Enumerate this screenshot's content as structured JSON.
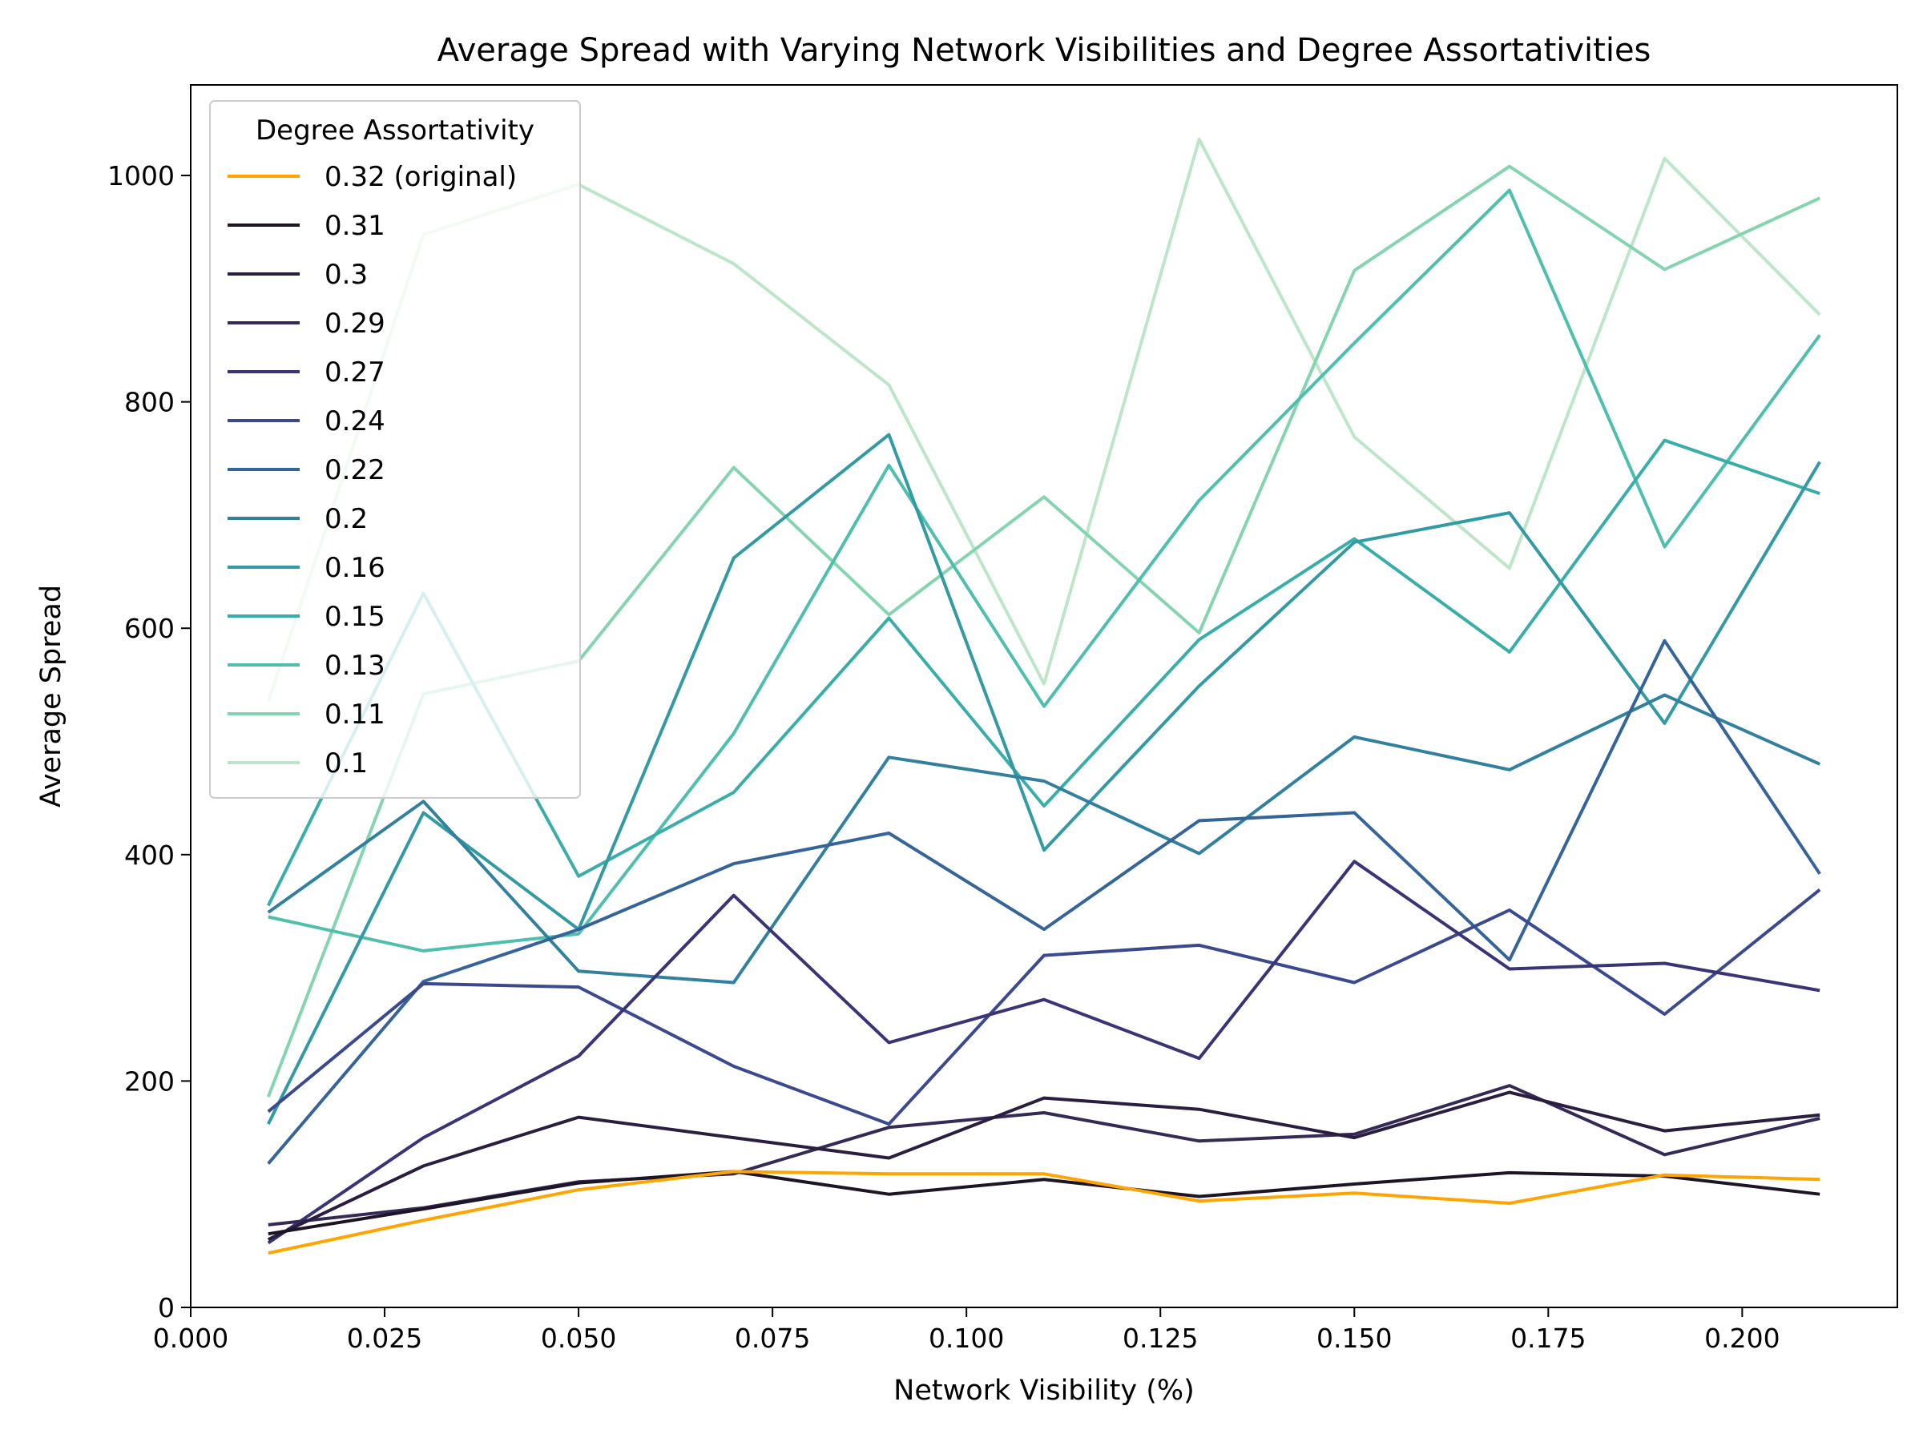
{
  "chart_data": {
    "type": "line",
    "title": "Average Spread with Varying Network Visibilities and Degree Assortativities",
    "xlabel": "Network Visibility (%)",
    "ylabel": "Average Spread",
    "xlim": [
      0.0,
      0.22
    ],
    "ylim": [
      0,
      1080
    ],
    "x_ticks": [
      "0.000",
      "0.025",
      "0.050",
      "0.075",
      "0.100",
      "0.125",
      "0.150",
      "0.175",
      "0.200"
    ],
    "y_ticks": [
      "0",
      "200",
      "400",
      "600",
      "800",
      "1000"
    ],
    "legend_title": "Degree Assortativity",
    "legend_position": "top-left",
    "grid": false,
    "x": [
      0.01,
      0.03,
      0.05,
      0.07,
      0.09,
      0.11,
      0.13,
      0.15,
      0.17,
      0.19,
      0.21
    ],
    "series": [
      {
        "name": "0.32 (original)",
        "color": "#ffa500",
        "values": [
          48,
          77,
          104,
          120,
          118,
          118,
          94,
          101,
          92,
          117,
          113
        ]
      },
      {
        "name": "0.31",
        "color": "#1d1426",
        "values": [
          65,
          87,
          110,
          120,
          100,
          113,
          98,
          109,
          119,
          116,
          100
        ]
      },
      {
        "name": "0.3",
        "color": "#2b1d3f",
        "values": [
          60,
          125,
          168,
          150,
          132,
          185,
          175,
          150,
          190,
          156,
          170
        ]
      },
      {
        "name": "0.29",
        "color": "#352a56",
        "values": [
          73,
          88,
          111,
          118,
          159,
          172,
          147,
          153,
          196,
          135,
          167
        ]
      },
      {
        "name": "0.27",
        "color": "#393476",
        "values": [
          57,
          150,
          222,
          364,
          234,
          272,
          220,
          394,
          299,
          304,
          280
        ]
      },
      {
        "name": "0.24",
        "color": "#3b4a8f",
        "values": [
          173,
          286,
          283,
          213,
          162,
          311,
          320,
          287,
          351,
          259,
          369
        ]
      },
      {
        "name": "0.22",
        "color": "#356498",
        "values": [
          127,
          288,
          334,
          392,
          419,
          334,
          430,
          437,
          307,
          589,
          383
        ]
      },
      {
        "name": "0.2",
        "color": "#30809e",
        "values": [
          349,
          447,
          297,
          287,
          486,
          465,
          401,
          504,
          475,
          541,
          480
        ]
      },
      {
        "name": "0.16",
        "color": "#329aa3",
        "values": [
          162,
          437,
          334,
          662,
          771,
          404,
          549,
          676,
          702,
          516,
          747
        ]
      },
      {
        "name": "0.15",
        "color": "#39aea8",
        "values": [
          355,
          631,
          381,
          455,
          609,
          443,
          590,
          679,
          579,
          766,
          719
        ]
      },
      {
        "name": "0.13",
        "color": "#4ebfac",
        "values": [
          345,
          315,
          330,
          507,
          744,
          531,
          713,
          852,
          987,
          672,
          859
        ]
      },
      {
        "name": "0.11",
        "color": "#85d4b0",
        "values": [
          186,
          542,
          571,
          742,
          612,
          716,
          596,
          916,
          1008,
          917,
          980
        ]
      },
      {
        "name": "0.1",
        "color": "#bde6c8",
        "values": [
          535,
          948,
          992,
          922,
          815,
          551,
          1032,
          769,
          653,
          1015,
          877
        ]
      }
    ]
  }
}
